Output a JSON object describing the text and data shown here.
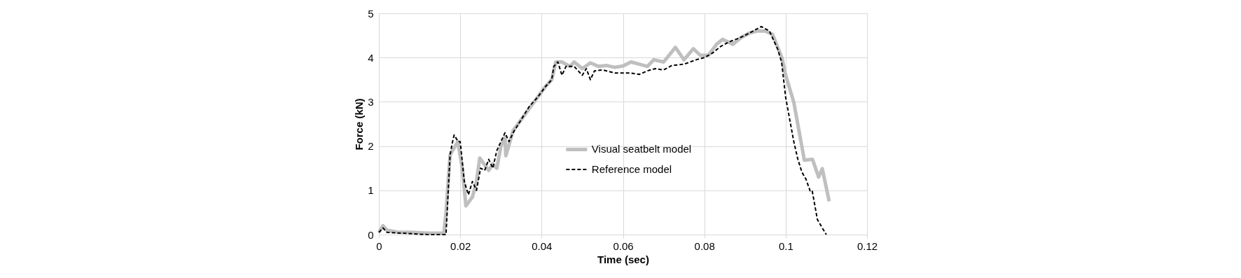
{
  "chart_data": {
    "type": "line",
    "xlabel": "Time (sec)",
    "ylabel": "Force (kN)",
    "xlim": [
      0,
      0.12
    ],
    "xticks": [
      0,
      0.02,
      0.04,
      0.06,
      0.08,
      0.1,
      0.12
    ],
    "ylim": [
      0,
      5
    ],
    "yticks": [
      0,
      1,
      2,
      3,
      4,
      5
    ],
    "grid": true,
    "legend": "center",
    "series": [
      {
        "name": "Visual seatbelt model",
        "color": "#bfbfbf",
        "line_style": "solid",
        "x": [
          0,
          0.001,
          0.002,
          0.005,
          0.008,
          0.012,
          0.016,
          0.0165,
          0.0175,
          0.0194,
          0.0205,
          0.0214,
          0.023,
          0.024,
          0.0248,
          0.027,
          0.028,
          0.029,
          0.03,
          0.031,
          0.0312,
          0.033,
          0.035,
          0.037,
          0.039,
          0.041,
          0.0425,
          0.0435,
          0.045,
          0.047,
          0.048,
          0.05,
          0.052,
          0.054,
          0.056,
          0.058,
          0.06,
          0.062,
          0.064,
          0.066,
          0.0676,
          0.07,
          0.0729,
          0.075,
          0.0773,
          0.079,
          0.081,
          0.083,
          0.0845,
          0.087,
          0.089,
          0.091,
          0.093,
          0.095,
          0.0968,
          0.0991,
          0.1,
          0.102,
          0.1046,
          0.1066,
          0.1081,
          0.109,
          0.1107
        ],
        "values": [
          0.05,
          0.2,
          0.1,
          0.05,
          0.05,
          0.03,
          0.03,
          0.5,
          1.8,
          2.1,
          1.5,
          0.65,
          0.85,
          1.2,
          1.73,
          1.45,
          1.6,
          1.5,
          2.0,
          2.2,
          1.78,
          2.35,
          2.6,
          2.85,
          3.1,
          3.35,
          3.5,
          3.9,
          3.9,
          3.8,
          3.9,
          3.75,
          3.88,
          3.8,
          3.82,
          3.78,
          3.81,
          3.9,
          3.85,
          3.8,
          3.95,
          3.9,
          4.23,
          3.95,
          4.2,
          4.05,
          4.05,
          4.3,
          4.41,
          4.3,
          4.45,
          4.55,
          4.6,
          4.6,
          4.52,
          3.99,
          3.6,
          2.99,
          1.68,
          1.7,
          1.3,
          1.49,
          0.75
        ]
      },
      {
        "name": "Reference model",
        "color": "#000000",
        "line_style": "dashed",
        "x": [
          0,
          0.001,
          0.002,
          0.008,
          0.012,
          0.0165,
          0.0175,
          0.018,
          0.0185,
          0.0195,
          0.02,
          0.021,
          0.022,
          0.023,
          0.024,
          0.025,
          0.026,
          0.027,
          0.028,
          0.029,
          0.03,
          0.031,
          0.032,
          0.033,
          0.035,
          0.037,
          0.039,
          0.041,
          0.0425,
          0.043,
          0.044,
          0.045,
          0.046,
          0.048,
          0.05,
          0.051,
          0.052,
          0.053,
          0.055,
          0.058,
          0.06,
          0.062,
          0.064,
          0.066,
          0.068,
          0.07,
          0.072,
          0.075,
          0.078,
          0.08,
          0.082,
          0.084,
          0.086,
          0.088,
          0.09,
          0.092,
          0.094,
          0.096,
          0.098,
          0.099,
          0.1,
          0.101,
          0.102,
          0.103,
          0.104,
          0.105,
          0.106,
          0.1065,
          0.1078,
          0.109,
          0.11
        ],
        "values": [
          0.05,
          0.15,
          0.05,
          0.02,
          0.0,
          0.0,
          1.8,
          2.05,
          2.25,
          2.1,
          2.1,
          1.2,
          0.9,
          1.2,
          1.0,
          1.5,
          1.45,
          1.7,
          1.5,
          1.9,
          2.1,
          2.3,
          2.1,
          2.3,
          2.6,
          2.9,
          3.1,
          3.35,
          3.5,
          3.8,
          3.9,
          3.6,
          3.8,
          3.8,
          3.6,
          3.75,
          3.5,
          3.7,
          3.72,
          3.65,
          3.65,
          3.65,
          3.62,
          3.7,
          3.75,
          3.72,
          3.82,
          3.85,
          3.95,
          4.0,
          4.1,
          4.25,
          4.35,
          4.42,
          4.5,
          4.6,
          4.7,
          4.6,
          4.2,
          3.9,
          3.1,
          2.6,
          2.1,
          1.7,
          1.41,
          1.25,
          0.99,
          1.0,
          0.34,
          0.15,
          0.0
        ]
      }
    ]
  }
}
